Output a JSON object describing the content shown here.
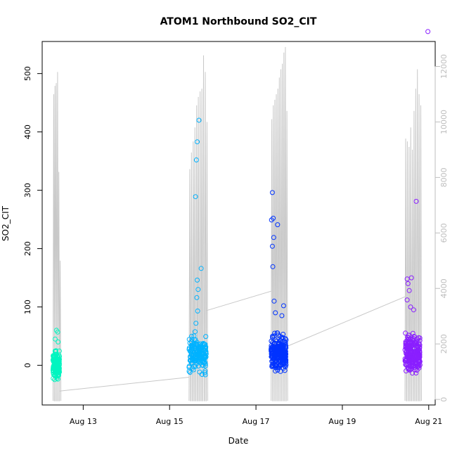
{
  "chart_data": {
    "type": "scatter",
    "title": "ATOM1 Northbound SO2_CIT",
    "xlabel": "Date",
    "ylabel": "SO2_CIT",
    "x_ticks": [
      "Aug 13",
      "Aug 15",
      "Aug 17",
      "Aug 19",
      "Aug 21"
    ],
    "x_tick_days": [
      13,
      15,
      17,
      19,
      21
    ],
    "xlim": [
      12.05,
      21.15
    ],
    "ylim": [
      -68,
      555
    ],
    "y_ticks": [
      0,
      100,
      200,
      300,
      400,
      500
    ],
    "y2lim": [
      -200,
      12900
    ],
    "y2_ticks": [
      0,
      2000,
      4000,
      6000,
      8000,
      10000,
      12000
    ],
    "axis_color": "#bebebe",
    "point_colors": [
      "#00f5c0",
      "#00b2ff",
      "#0033ff",
      "#8a1fff"
    ],
    "series": [
      {
        "x_range": [
          12.3,
          12.45
        ],
        "center": 0,
        "spread": 18,
        "count": 160,
        "outliers": [
          [
            12.38,
            60
          ],
          [
            12.41,
            57
          ],
          [
            12.42,
            40
          ],
          [
            12.35,
            45
          ]
        ]
      },
      {
        "x_range": [
          15.45,
          15.85
        ],
        "center": 20,
        "spread": 24,
        "count": 170,
        "outliers": [
          [
            15.68,
            420
          ],
          [
            15.64,
            383
          ],
          [
            15.62,
            352
          ],
          [
            15.6,
            289
          ],
          [
            15.73,
            166
          ],
          [
            15.64,
            146
          ],
          [
            15.66,
            130
          ],
          [
            15.63,
            116
          ],
          [
            15.65,
            93
          ],
          [
            15.61,
            72
          ]
        ]
      },
      {
        "x_range": [
          17.35,
          17.7
        ],
        "center": 20,
        "spread": 24,
        "count": 260,
        "outliers": [
          [
            17.38,
            296
          ],
          [
            17.4,
            252
          ],
          [
            17.36,
            249
          ],
          [
            17.5,
            241
          ],
          [
            17.41,
            219
          ],
          [
            17.38,
            204
          ],
          [
            17.39,
            169
          ],
          [
            17.42,
            110
          ],
          [
            17.64,
            102
          ],
          [
            17.45,
            90
          ],
          [
            17.6,
            85
          ]
        ]
      },
      {
        "x_range": [
          20.45,
          20.8
        ],
        "center": 20,
        "spread": 24,
        "count": 240,
        "outliers": [
          [
            20.98,
            572
          ],
          [
            20.71,
            281
          ],
          [
            20.6,
            150
          ],
          [
            20.5,
            148
          ],
          [
            20.52,
            140
          ],
          [
            20.55,
            128
          ],
          [
            20.5,
            112
          ],
          [
            20.58,
            100
          ],
          [
            20.65,
            95
          ]
        ]
      }
    ],
    "secondary_line": {
      "bursts": [
        {
          "x_range": [
            12.3,
            12.45
          ],
          "peaks": [
            11000,
            11300,
            11400,
            11800,
            8200,
            5000
          ],
          "min": -50
        },
        {
          "x_range": [
            15.45,
            15.85
          ],
          "peaks": [
            8300,
            8900,
            9300,
            9800,
            10600,
            10900,
            11100,
            11200,
            12400,
            11800,
            10000
          ],
          "min": -50
        },
        {
          "x_range": [
            17.35,
            17.7
          ],
          "peaks": [
            10100,
            10600,
            10800,
            11000,
            11200,
            11600,
            11900,
            12100,
            12500,
            12700,
            10400
          ],
          "min": -50
        },
        {
          "x_range": [
            20.45,
            20.8
          ],
          "peaks": [
            9400,
            9300,
            9100,
            9800,
            9000,
            10400,
            11200,
            11900,
            11000,
            10600
          ],
          "min": -50
        }
      ],
      "connectors": [
        [
          [
            12.45,
            300
          ],
          [
            15.45,
            800
          ]
        ],
        [
          [
            15.85,
            3200
          ],
          [
            17.35,
            3900
          ]
        ],
        [
          [
            17.7,
            1900
          ],
          [
            20.45,
            3700
          ]
        ]
      ]
    }
  }
}
